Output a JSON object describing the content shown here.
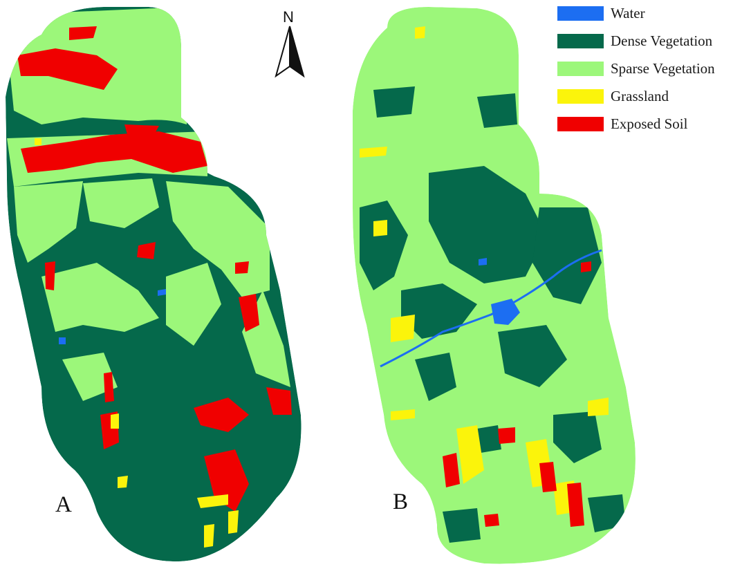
{
  "colors": {
    "water": "#1c6ef2",
    "dense_vegetation": "#05694b",
    "sparse_vegetation": "#9cf77a",
    "grassland": "#fbf40b",
    "exposed_soil": "#f00000"
  },
  "north_arrow": {
    "label": "N",
    "icon": "north-arrow-icon"
  },
  "legend": {
    "items": [
      {
        "label": "Water",
        "color": "#1c6ef2"
      },
      {
        "label": "Dense Vegetation",
        "color": "#05694b"
      },
      {
        "label": "Sparse Vegetation",
        "color": "#9cf77a"
      },
      {
        "label": "Grassland",
        "color": "#fbf40b"
      },
      {
        "label": "Exposed Soil",
        "color": "#f00000"
      }
    ]
  },
  "panels": [
    {
      "label": "A"
    },
    {
      "label": "B"
    }
  ]
}
